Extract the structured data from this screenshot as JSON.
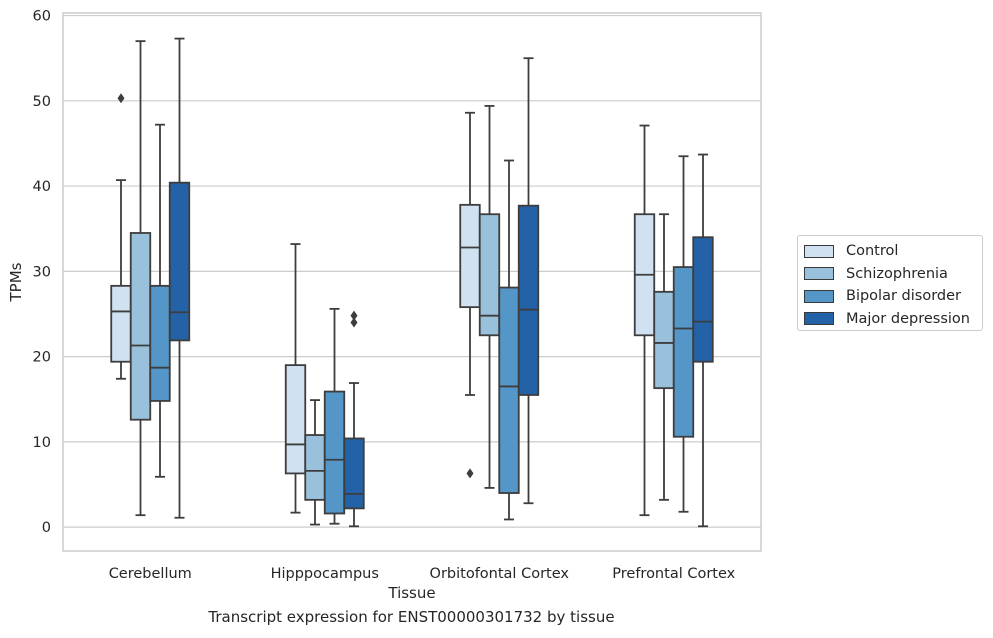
{
  "chart_data": {
    "type": "box",
    "title": "",
    "xlabel": "Tissue",
    "ylabel": "TPMs",
    "ylim": [
      -2.8,
      60.3
    ],
    "yticks": [
      0,
      10,
      20,
      30,
      40,
      50,
      60
    ],
    "grid": "horizontal",
    "legend_position": "right",
    "categories": [
      "Cerebellum",
      "Hipppocampus",
      "Orbitofontal Cortex",
      "Prefrontal Cortex"
    ],
    "series": [
      {
        "name": "Control",
        "color": "#d0e1f2",
        "boxes": [
          {
            "whisker_low": 17.4,
            "q1": 19.4,
            "median": 25.3,
            "q3": 28.3,
            "whisker_high": 40.7,
            "outliers": [
              50.3
            ]
          },
          {
            "whisker_low": 1.7,
            "q1": 6.3,
            "median": 9.7,
            "q3": 19.0,
            "whisker_high": 33.2,
            "outliers": []
          },
          {
            "whisker_low": 15.5,
            "q1": 25.8,
            "median": 32.8,
            "q3": 37.8,
            "whisker_high": 48.6,
            "outliers": [
              6.3
            ]
          },
          {
            "whisker_low": 1.4,
            "q1": 22.5,
            "median": 29.6,
            "q3": 36.7,
            "whisker_high": 47.1,
            "outliers": []
          }
        ]
      },
      {
        "name": "Schizophrenia",
        "color": "#9ac1dc",
        "boxes": [
          {
            "whisker_low": 1.4,
            "q1": 12.6,
            "median": 21.3,
            "q3": 34.5,
            "whisker_high": 57.0,
            "outliers": []
          },
          {
            "whisker_low": 0.3,
            "q1": 3.2,
            "median": 6.6,
            "q3": 10.8,
            "whisker_high": 14.9,
            "outliers": []
          },
          {
            "whisker_low": 4.6,
            "q1": 22.5,
            "median": 24.8,
            "q3": 36.7,
            "whisker_high": 49.4,
            "outliers": []
          },
          {
            "whisker_low": 3.2,
            "q1": 16.3,
            "median": 21.6,
            "q3": 27.6,
            "whisker_high": 36.7,
            "outliers": []
          }
        ]
      },
      {
        "name": "Bipolar disorder",
        "color": "#5496c8",
        "boxes": [
          {
            "whisker_low": 5.9,
            "q1": 14.8,
            "median": 18.7,
            "q3": 28.3,
            "whisker_high": 47.2,
            "outliers": []
          },
          {
            "whisker_low": 0.4,
            "q1": 1.6,
            "median": 7.9,
            "q3": 15.9,
            "whisker_high": 25.6,
            "outliers": []
          },
          {
            "whisker_low": 0.9,
            "q1": 4.0,
            "median": 16.5,
            "q3": 28.1,
            "whisker_high": 43.0,
            "outliers": []
          },
          {
            "whisker_low": 1.8,
            "q1": 10.6,
            "median": 23.3,
            "q3": 30.5,
            "whisker_high": 43.5,
            "outliers": []
          }
        ]
      },
      {
        "name": "Major depression",
        "color": "#2462a8",
        "boxes": [
          {
            "whisker_low": 1.1,
            "q1": 21.9,
            "median": 25.2,
            "q3": 40.4,
            "whisker_high": 57.3,
            "outliers": []
          },
          {
            "whisker_low": 0.1,
            "q1": 2.2,
            "median": 3.9,
            "q3": 10.4,
            "whisker_high": 16.9,
            "outliers": [
              24.0,
              24.8
            ]
          },
          {
            "whisker_low": 2.8,
            "q1": 15.5,
            "median": 25.5,
            "q3": 37.7,
            "whisker_high": 55.0,
            "outliers": []
          },
          {
            "whisker_low": 0.1,
            "q1": 19.4,
            "median": 24.1,
            "q3": 34.0,
            "whisker_high": 43.7,
            "outliers": []
          }
        ]
      }
    ],
    "caption": "Transcript expression for ENST00000301732 by tissue"
  }
}
